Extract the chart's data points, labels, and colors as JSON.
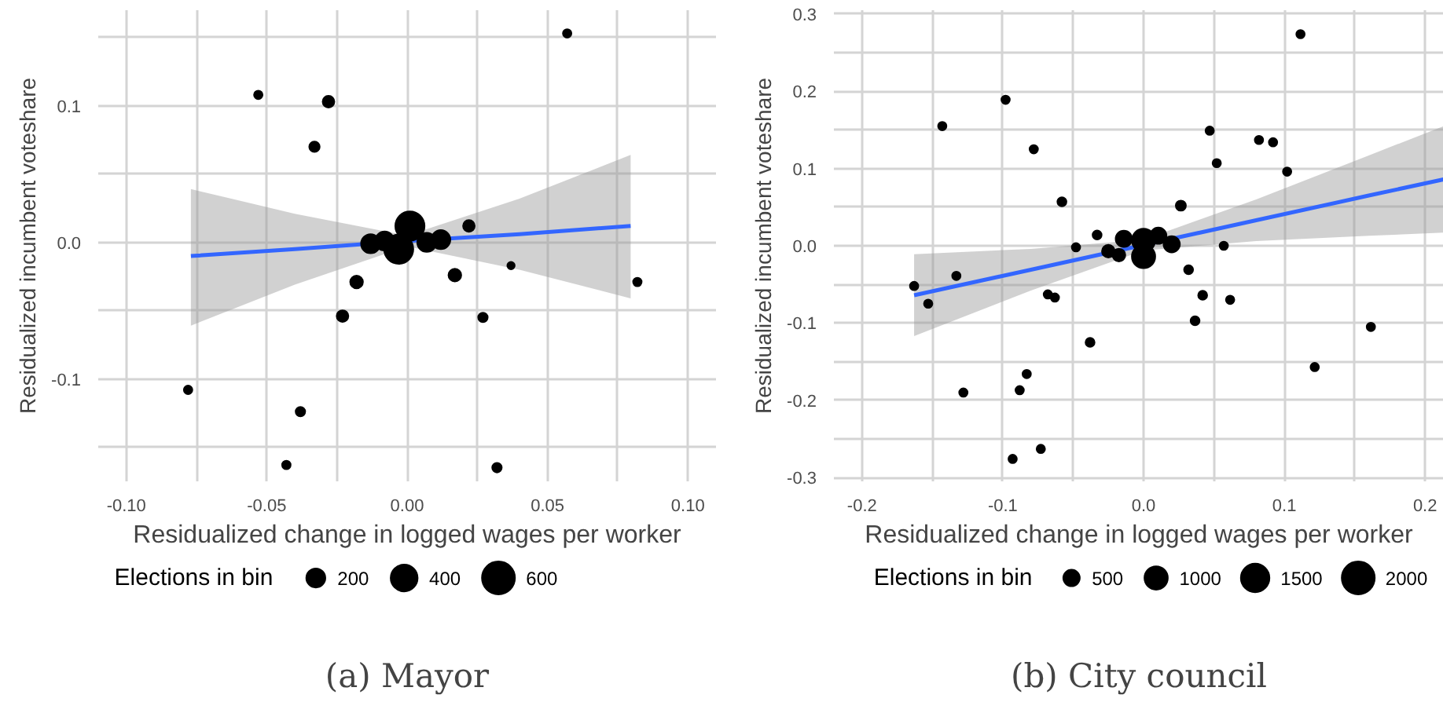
{
  "chart_data": [
    {
      "type": "bubble",
      "title": "(a) Mayor",
      "xlabel": "Residualized change in logged wages per worker",
      "ylabel": "Residualized incumbent voteshare",
      "legend_title": "Elections in bin",
      "grid": true,
      "xlim": [
        -0.11,
        0.11
      ],
      "ylim": [
        -0.175,
        0.17
      ],
      "xticks": [
        {
          "value": -0.1,
          "label": "-0.10"
        },
        {
          "value": -0.075,
          "label": null
        },
        {
          "value": -0.05,
          "label": "-0.05"
        },
        {
          "value": -0.025,
          "label": null
        },
        {
          "value": 0,
          "label": "0.00"
        },
        {
          "value": 0.025,
          "label": null
        },
        {
          "value": 0.05,
          "label": "0.05"
        },
        {
          "value": 0.075,
          "label": null
        },
        {
          "value": 0.1,
          "label": "0.10"
        }
      ],
      "yticks": [
        {
          "value": -0.15,
          "label": null
        },
        {
          "value": -0.1,
          "label": "-0.1"
        },
        {
          "value": -0.05,
          "label": null
        },
        {
          "value": 0,
          "label": "0.0"
        },
        {
          "value": 0.05,
          "label": null
        },
        {
          "value": 0.1,
          "label": "0.1"
        },
        {
          "value": 0.15,
          "label": null
        }
      ],
      "size_legend": [
        200,
        400,
        600
      ],
      "series": [
        {
          "type": "line",
          "color": "#3366ff",
          "x": [
            -0.077,
            -0.04,
            0,
            0.04,
            0.0796
          ],
          "values": [
            -0.01,
            -0.005,
            0.001,
            0.006,
            0.012
          ],
          "lower": [
            -0.061,
            -0.031,
            -0.003,
            -0.02,
            -0.041
          ],
          "upper": [
            0.039,
            0.021,
            0.005,
            0.032,
            0.064
          ]
        },
        {
          "color": "#000000",
          "x": [
            0.057,
            -0.053,
            -0.028,
            -0.033,
            0.022,
            0.037,
            0.082,
            -0.018,
            0.017,
            -0.023,
            0.027,
            -0.078,
            -0.038,
            -0.043,
            0.032,
            0.001,
            -0.003,
            -0.013,
            -0.008,
            0.007,
            0.012
          ],
          "values": [
            0.153,
            0.108,
            0.103,
            0.07,
            0.012,
            -0.017,
            -0.029,
            -0.029,
            -0.024,
            -0.054,
            -0.055,
            -0.108,
            -0.124,
            -0.163,
            -0.165,
            0.012,
            -0.005,
            -0.001,
            0.001,
            0,
            0.002
          ],
          "sizes": [
            40,
            40,
            75,
            60,
            75,
            30,
            40,
            90,
            90,
            75,
            50,
            40,
            50,
            40,
            50,
            470,
            470,
            200,
            200,
            200,
            200
          ]
        }
      ]
    },
    {
      "type": "bubble",
      "title": "(b) City council",
      "xlabel": "Residualized change in logged wages per worker",
      "ylabel": "Residualized incumbent voteshare",
      "legend_title": "Elections in bin",
      "grid": true,
      "xlim": [
        -0.22,
        0.2133
      ],
      "ylim": [
        -0.305,
        0.305
      ],
      "xticks": [
        {
          "value": -0.2,
          "label": "-0.2"
        },
        {
          "value": -0.15,
          "label": null
        },
        {
          "value": -0.1,
          "label": "-0.1"
        },
        {
          "value": -0.05,
          "label": null
        },
        {
          "value": 0,
          "label": "0.0"
        },
        {
          "value": 0.05,
          "label": null
        },
        {
          "value": 0.1,
          "label": "0.1"
        },
        {
          "value": 0.15,
          "label": null
        },
        {
          "value": 0.2,
          "label": "0.2"
        }
      ],
      "yticks": [
        {
          "value": -0.3,
          "label": "-0.3"
        },
        {
          "value": -0.25,
          "label": null
        },
        {
          "value": -0.2,
          "label": "-0.2"
        },
        {
          "value": -0.15,
          "label": null
        },
        {
          "value": -0.1,
          "label": "-0.1"
        },
        {
          "value": -0.05,
          "label": null
        },
        {
          "value": 0,
          "label": "0.0"
        },
        {
          "value": 0.05,
          "label": null
        },
        {
          "value": 0.1,
          "label": "0.1"
        },
        {
          "value": 0.15,
          "label": null
        },
        {
          "value": 0.2,
          "label": "0.2"
        },
        {
          "value": 0.25,
          "label": null
        },
        {
          "value": 0.3,
          "label": "0.3"
        }
      ],
      "size_legend": [
        500,
        1000,
        1500,
        2000
      ],
      "series": [
        {
          "type": "line",
          "color": "#3366ff",
          "x": [
            -0.163,
            -0.08,
            0,
            0.08,
            0.16,
            0.2133
          ],
          "values": [
            -0.064,
            -0.031,
            0.001,
            0.033,
            0.065,
            0.086
          ],
          "lower": [
            -0.117,
            -0.058,
            -0.006,
            0.006,
            0.013,
            0.017
          ],
          "upper": [
            -0.011,
            -0.004,
            0.008,
            0.06,
            0.117,
            0.155
          ]
        },
        {
          "color": "#000000",
          "x": [
            0.1115,
            -0.098,
            -0.143,
            -0.078,
            0.047,
            0.082,
            0.092,
            0.052,
            0.102,
            -0.058,
            0.0265,
            -0.033,
            -0.048,
            0.057,
            -0.133,
            -0.163,
            -0.153,
            0.032,
            -0.068,
            -0.063,
            0.042,
            0.0615,
            0.0366,
            0.1615,
            -0.038,
            0.1216,
            -0.083,
            -0.088,
            -0.128,
            -0.073,
            -0.093,
            0,
            0,
            -0.014,
            0.0105,
            0.02,
            -0.025,
            -0.0175
          ],
          "values": [
            0.274,
            0.189,
            0.155,
            0.125,
            0.149,
            0.137,
            0.134,
            0.107,
            0.096,
            0.057,
            0.052,
            0.014,
            -0.002,
            0,
            -0.039,
            -0.052,
            -0.075,
            -0.031,
            -0.063,
            -0.067,
            -0.064,
            -0.07,
            -0.097,
            -0.105,
            -0.125,
            -0.157,
            -0.166,
            -0.187,
            -0.19,
            -0.263,
            -0.276,
            0.007,
            -0.014,
            0.009,
            0.013,
            0.002,
            -0.007,
            -0.012
          ],
          "sizes": [
            130,
            130,
            130,
            130,
            130,
            130,
            130,
            130,
            130,
            150,
            190,
            150,
            130,
            130,
            130,
            130,
            130,
            150,
            130,
            130,
            150,
            130,
            150,
            130,
            150,
            130,
            130,
            130,
            130,
            130,
            130,
            1000,
            1000,
            490,
            490,
            490,
            300,
            300
          ]
        }
      ]
    }
  ]
}
